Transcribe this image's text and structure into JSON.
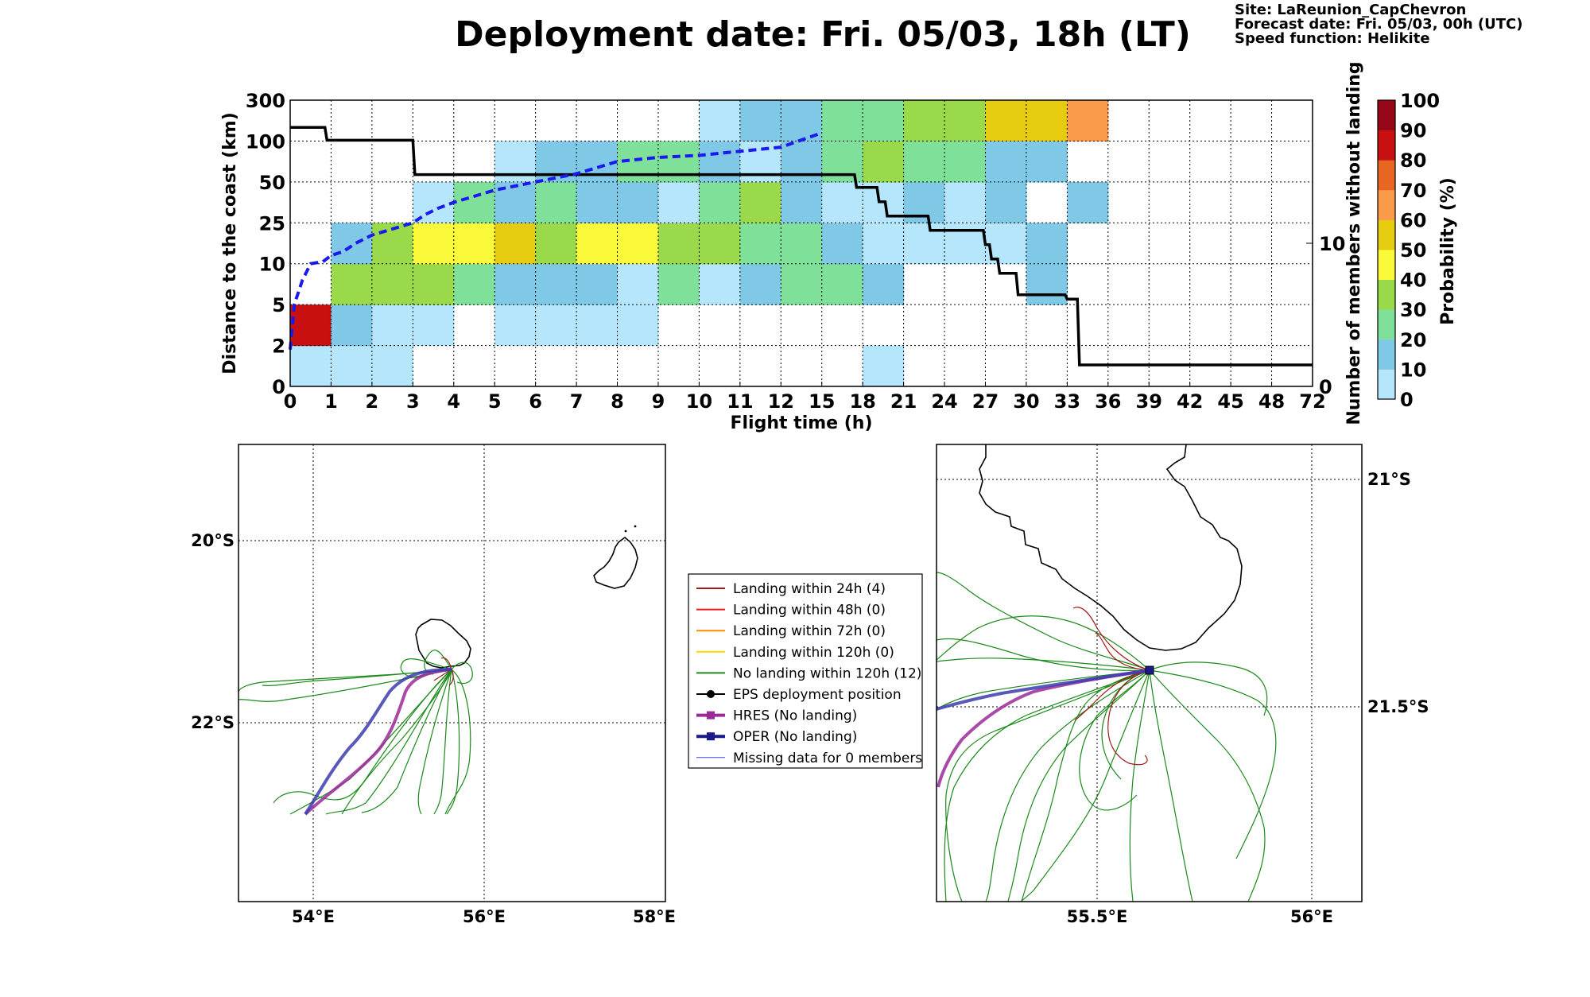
{
  "title": "Deployment date: Fri. 05/03, 18h (LT)",
  "info": [
    "Site: LaReunion_CapChevron",
    "Forecast date: Fri. 05/03, 00h (UTC)",
    "Speed function: Helikite"
  ],
  "chart_data": [
    {
      "type": "heatmap",
      "xlabel": "Flight time (h)",
      "ylabel": "Distance to the coast (km)",
      "y2label": "Number of members without landing",
      "x_ticks": [
        "0",
        "1",
        "2",
        "3",
        "4",
        "5",
        "6",
        "7",
        "8",
        "9",
        "10",
        "11",
        "12",
        "15",
        "18",
        "21",
        "24",
        "27",
        "30",
        "33",
        "36",
        "39",
        "42",
        "45",
        "48",
        "72"
      ],
      "y_ticks": [
        "0",
        "2",
        "5",
        "10",
        "25",
        "50",
        "100",
        "300"
      ],
      "y2_ticks": [
        "0",
        "10"
      ],
      "y2lim": [
        0,
        20
      ],
      "colorbar": {
        "label": "Probability (%)",
        "ticks": [
          "0",
          "10",
          "20",
          "30",
          "40",
          "50",
          "60",
          "70",
          "80",
          "90",
          "100"
        ],
        "colors": [
          "#b5e6fc",
          "#7fc8e6",
          "#7fe09a",
          "#9ada4a",
          "#fafa3a",
          "#e5cc10",
          "#f99b4a",
          "#e86622",
          "#c81010",
          "#960818"
        ]
      },
      "cells": [
        {
          "x": 0,
          "y": 0,
          "p": 5
        },
        {
          "x": 1,
          "y": 0,
          "p": 5
        },
        {
          "x": 2,
          "y": 0,
          "p": 5
        },
        {
          "x": 14,
          "y": 0,
          "p": 5
        },
        {
          "x": 0,
          "y": 1,
          "p": 85
        },
        {
          "x": 1,
          "y": 1,
          "p": 15
        },
        {
          "x": 2,
          "y": 1,
          "p": 5
        },
        {
          "x": 3,
          "y": 1,
          "p": 5
        },
        {
          "x": 5,
          "y": 1,
          "p": 5
        },
        {
          "x": 6,
          "y": 1,
          "p": 5
        },
        {
          "x": 7,
          "y": 1,
          "p": 5
        },
        {
          "x": 8,
          "y": 1,
          "p": 5
        },
        {
          "x": 1,
          "y": 2,
          "p": 35
        },
        {
          "x": 2,
          "y": 2,
          "p": 35
        },
        {
          "x": 3,
          "y": 2,
          "p": 35
        },
        {
          "x": 4,
          "y": 2,
          "p": 25
        },
        {
          "x": 5,
          "y": 2,
          "p": 15
        },
        {
          "x": 6,
          "y": 2,
          "p": 15
        },
        {
          "x": 7,
          "y": 2,
          "p": 15
        },
        {
          "x": 8,
          "y": 2,
          "p": 5
        },
        {
          "x": 9,
          "y": 2,
          "p": 25
        },
        {
          "x": 10,
          "y": 2,
          "p": 5
        },
        {
          "x": 11,
          "y": 2,
          "p": 15
        },
        {
          "x": 12,
          "y": 2,
          "p": 25
        },
        {
          "x": 13,
          "y": 2,
          "p": 25
        },
        {
          "x": 14,
          "y": 2,
          "p": 15
        },
        {
          "x": 18,
          "y": 2,
          "p": 15
        },
        {
          "x": 1,
          "y": 3,
          "p": 15
        },
        {
          "x": 2,
          "y": 3,
          "p": 35
        },
        {
          "x": 3,
          "y": 3,
          "p": 45
        },
        {
          "x": 4,
          "y": 3,
          "p": 45
        },
        {
          "x": 5,
          "y": 3,
          "p": 55
        },
        {
          "x": 6,
          "y": 3,
          "p": 35
        },
        {
          "x": 7,
          "y": 3,
          "p": 45
        },
        {
          "x": 8,
          "y": 3,
          "p": 45
        },
        {
          "x": 9,
          "y": 3,
          "p": 35
        },
        {
          "x": 10,
          "y": 3,
          "p": 35
        },
        {
          "x": 11,
          "y": 3,
          "p": 25
        },
        {
          "x": 12,
          "y": 3,
          "p": 25
        },
        {
          "x": 13,
          "y": 3,
          "p": 15
        },
        {
          "x": 14,
          "y": 3,
          "p": 5
        },
        {
          "x": 15,
          "y": 3,
          "p": 5
        },
        {
          "x": 16,
          "y": 3,
          "p": 5
        },
        {
          "x": 17,
          "y": 3,
          "p": 5
        },
        {
          "x": 18,
          "y": 3,
          "p": 15
        },
        {
          "x": 3,
          "y": 4,
          "p": 5
        },
        {
          "x": 4,
          "y": 4,
          "p": 25
        },
        {
          "x": 5,
          "y": 4,
          "p": 15
        },
        {
          "x": 6,
          "y": 4,
          "p": 25
        },
        {
          "x": 7,
          "y": 4,
          "p": 15
        },
        {
          "x": 8,
          "y": 4,
          "p": 15
        },
        {
          "x": 9,
          "y": 4,
          "p": 5
        },
        {
          "x": 10,
          "y": 4,
          "p": 25
        },
        {
          "x": 11,
          "y": 4,
          "p": 35
        },
        {
          "x": 12,
          "y": 4,
          "p": 15
        },
        {
          "x": 13,
          "y": 4,
          "p": 5
        },
        {
          "x": 14,
          "y": 4,
          "p": 5
        },
        {
          "x": 15,
          "y": 4,
          "p": 15
        },
        {
          "x": 16,
          "y": 4,
          "p": 5
        },
        {
          "x": 17,
          "y": 4,
          "p": 15
        },
        {
          "x": 19,
          "y": 4,
          "p": 15
        },
        {
          "x": 5,
          "y": 5,
          "p": 5
        },
        {
          "x": 6,
          "y": 5,
          "p": 15
        },
        {
          "x": 7,
          "y": 5,
          "p": 15
        },
        {
          "x": 8,
          "y": 5,
          "p": 25
        },
        {
          "x": 9,
          "y": 5,
          "p": 25
        },
        {
          "x": 10,
          "y": 5,
          "p": 15
        },
        {
          "x": 11,
          "y": 5,
          "p": 5
        },
        {
          "x": 12,
          "y": 5,
          "p": 15
        },
        {
          "x": 13,
          "y": 5,
          "p": 25
        },
        {
          "x": 14,
          "y": 5,
          "p": 35
        },
        {
          "x": 15,
          "y": 5,
          "p": 25
        },
        {
          "x": 16,
          "y": 5,
          "p": 25
        },
        {
          "x": 17,
          "y": 5,
          "p": 15
        },
        {
          "x": 18,
          "y": 5,
          "p": 15
        },
        {
          "x": 10,
          "y": 6,
          "p": 5
        },
        {
          "x": 11,
          "y": 6,
          "p": 15
        },
        {
          "x": 12,
          "y": 6,
          "p": 15
        },
        {
          "x": 13,
          "y": 6,
          "p": 25
        },
        {
          "x": 14,
          "y": 6,
          "p": 25
        },
        {
          "x": 15,
          "y": 6,
          "p": 35
        },
        {
          "x": 16,
          "y": 6,
          "p": 35
        },
        {
          "x": 17,
          "y": 6,
          "p": 55
        },
        {
          "x": 18,
          "y": 6,
          "p": 55
        },
        {
          "x": 19,
          "y": 6,
          "p": 65
        }
      ],
      "series": [
        {
          "name": "Number of members without landing",
          "axis": "right",
          "x": [
            0,
            0.85,
            0.9,
            3,
            3.05,
            13.8,
            13.85,
            14.35,
            14.4,
            14.55,
            14.6,
            15.6,
            15.65,
            16.95,
            17.0,
            17.1,
            17.15,
            17.3,
            17.35,
            17.75,
            17.8,
            18.95,
            19.0,
            19.25,
            19.3,
            25
          ],
          "y": [
            18.1,
            18.1,
            17.2,
            17.2,
            14.8,
            14.8,
            13.9,
            13.9,
            12.9,
            12.9,
            11.9,
            11.9,
            10.9,
            10.9,
            9.9,
            9.9,
            8.9,
            8.9,
            7.9,
            7.9,
            6.4,
            6.4,
            6.1,
            6.1,
            1.5,
            1.5
          ]
        },
        {
          "name": "Mean distance to the coast",
          "axis": "left",
          "style": "dashed",
          "x": [
            0,
            0.1,
            0.3,
            0.5,
            0.8,
            1,
            1.3,
            1.6,
            2,
            2.5,
            3,
            3.3,
            3.6,
            4,
            4.5,
            5,
            5.5,
            6,
            7,
            8,
            9,
            10,
            11,
            12,
            13
          ],
          "y": [
            0.9,
            2.0,
            2.6,
            3.0,
            3.05,
            3.2,
            3.3,
            3.5,
            3.7,
            3.85,
            4.0,
            4.2,
            4.35,
            4.5,
            4.65,
            4.8,
            4.9,
            5.0,
            5.2,
            5.5,
            5.6,
            5.65,
            5.75,
            5.85,
            6.2
          ]
        }
      ]
    },
    {
      "type": "map",
      "x_ticks": [
        "54°E",
        "56°E",
        "58°E"
      ],
      "y_ticks": [
        "20°S",
        "22°S"
      ]
    },
    {
      "type": "map",
      "x_ticks": [
        "55.5°E",
        "56°E"
      ],
      "y_ticks": [
        "21°S",
        "21.5°S"
      ]
    }
  ],
  "legend": [
    {
      "label": "Landing within 24h (4)",
      "color": "#a01818",
      "marker": "none",
      "width": 2
    },
    {
      "label": "Landing within 48h (0)",
      "color": "#ee1c1c",
      "marker": "none",
      "width": 2
    },
    {
      "label": "Landing within 72h (0)",
      "color": "#ff8c00",
      "marker": "none",
      "width": 2
    },
    {
      "label": "Landing within 120h (0)",
      "color": "#ffd700",
      "marker": "none",
      "width": 2
    },
    {
      "label": "No landing within 120h (12)",
      "color": "#1a8a1a",
      "marker": "none",
      "width": 2
    },
    {
      "label": "EPS deployment position",
      "color": "#000000",
      "marker": "circle",
      "width": 2
    },
    {
      "label": "HRES (No landing)",
      "color": "#9a2a9a",
      "marker": "square",
      "width": 4
    },
    {
      "label": "OPER (No landing)",
      "color": "#1a1a8a",
      "marker": "square",
      "width": 4
    },
    {
      "label": "Missing data for 0 members",
      "color": "#3c3cff",
      "marker": "none",
      "width": 1
    }
  ]
}
